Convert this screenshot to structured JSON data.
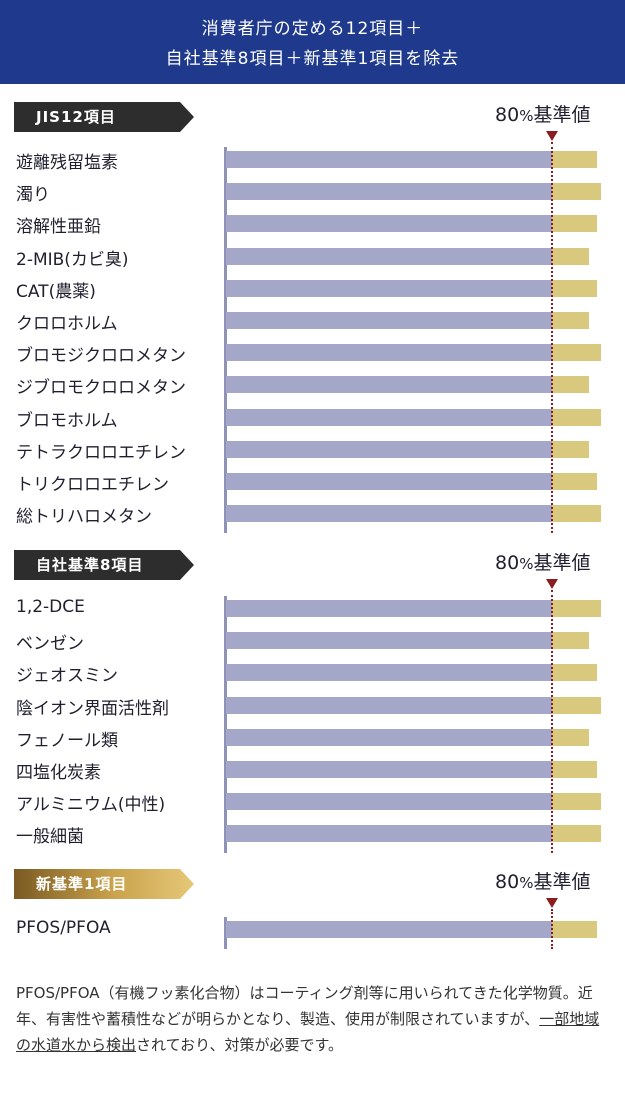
{
  "header": {
    "line1": "消費者庁の定める12項目＋",
    "line2": "自社基準8項目＋新基準1項目を除去"
  },
  "chart_data": [
    {
      "type": "bar",
      "orientation": "horizontal",
      "title": "JIS12項目",
      "threshold_label_num": "80",
      "threshold_label_pct": "%",
      "threshold_label_text": "基準値",
      "threshold": 80,
      "xlim": [
        0,
        100
      ],
      "categories": [
        "遊離残留塩素",
        "濁り",
        "溶解性亜鉛",
        "2-MIB(カビ臭)",
        "CAT(農薬)",
        "クロロホルム",
        "ブロモジクロロメタン",
        "ジブロモクロロメタン",
        "ブロモホルム",
        "テトラクロロエチレン",
        "トリクロロエチレン",
        "総トリハロメタン"
      ],
      "values": [
        91,
        92,
        91,
        89,
        91,
        89,
        92,
        89,
        92,
        89,
        91,
        92
      ]
    },
    {
      "type": "bar",
      "orientation": "horizontal",
      "title": "自社基準8項目",
      "threshold_label_num": "80",
      "threshold_label_pct": "%",
      "threshold_label_text": "基準値",
      "threshold": 80,
      "xlim": [
        0,
        100
      ],
      "categories": [
        "1,2-DCE",
        "ベンゼン",
        "ジェオスミン",
        "陰イオン界面活性剤",
        "フェノール類",
        "四塩化炭素",
        "アルミニウム(中性)",
        "一般細菌"
      ],
      "values": [
        92,
        89,
        91,
        92,
        89,
        91,
        92,
        92
      ]
    },
    {
      "type": "bar",
      "orientation": "horizontal",
      "title": "新基準1項目",
      "threshold_label_num": "80",
      "threshold_label_pct": "%",
      "threshold_label_text": "基準値",
      "threshold": 80,
      "xlim": [
        0,
        100
      ],
      "categories": [
        "PFOS/PFOA"
      ],
      "values": [
        91
      ]
    }
  ],
  "colors": {
    "header_bg": "#1f3a8c",
    "bar_base": "#a5a7c8",
    "bar_over": "#d9c97e",
    "threshold": "#8a1e1e"
  },
  "note": {
    "part1": "PFOS/PFOA（有機フッ素化合物）はコーティング剤等に用いられてきた化学物質。近年、有害性や蓄積性などが明らかとなり、製造、使用が制限されていますが、",
    "link": "一部地域の水道水から検出",
    "part2": "されており、対策が必要です。"
  }
}
